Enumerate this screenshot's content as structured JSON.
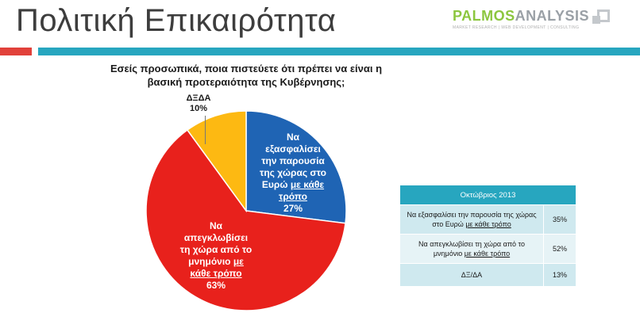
{
  "header": {
    "title": "Πολιτική Επικαιρότητα",
    "logo": {
      "part1": "PALMOS",
      "part2": "ANALYSIS",
      "tagline": "MARKET RESEARCH | WEB DEVELOPMENT | CONSULTING"
    }
  },
  "colors": {
    "blue": "#1f64b4",
    "red": "#e8211c",
    "yellow": "#fdb912",
    "accent_red": "#e1413a",
    "accent_teal": "#27a6bf"
  },
  "chart_data": {
    "type": "pie",
    "title": "Εσείς προσωπικά, ποια πιστεύετε ότι πρέπει να είναι η βασική προτεραιότητα της Κυβέρνησης;",
    "slices": [
      {
        "id": "blue",
        "label_lines": [
          "Να",
          "εξασφαλίσει",
          "την παρουσία",
          "της χώρας στο"
        ],
        "label_tail": "Ευρώ",
        "label_emph_1": "με κάθε",
        "label_emph_2": "τρόπο",
        "value": 27,
        "value_text": "27%",
        "color": "#1f64b4"
      },
      {
        "id": "red",
        "label_lines": [
          "Να",
          "απεγκλωβίσει",
          "τη χώρα από το"
        ],
        "label_tail": "μνημόνιο",
        "label_emph_1": "με",
        "label_emph_2": "κάθε τρόπο",
        "value": 63,
        "value_text": "63%",
        "color": "#e8211c"
      },
      {
        "id": "yellow",
        "label": "ΔΞΔΑ",
        "value": 10,
        "value_text": "10%",
        "color": "#fdb912"
      }
    ]
  },
  "summary_table": {
    "header": "Οκτώβριος 2013",
    "rows": [
      {
        "text": "Να εξασφαλίσει την παρουσία της χώρας στο Ευρώ",
        "emph": "με κάθε τρόπο",
        "value": "35%"
      },
      {
        "text": "Να απεγκλωβίσει τη χώρα από το μνημόνιο",
        "emph": "με κάθε τρόπο",
        "value": "52%"
      },
      {
        "text": "ΔΞ/ΔΑ",
        "emph": "",
        "value": "13%"
      }
    ]
  }
}
